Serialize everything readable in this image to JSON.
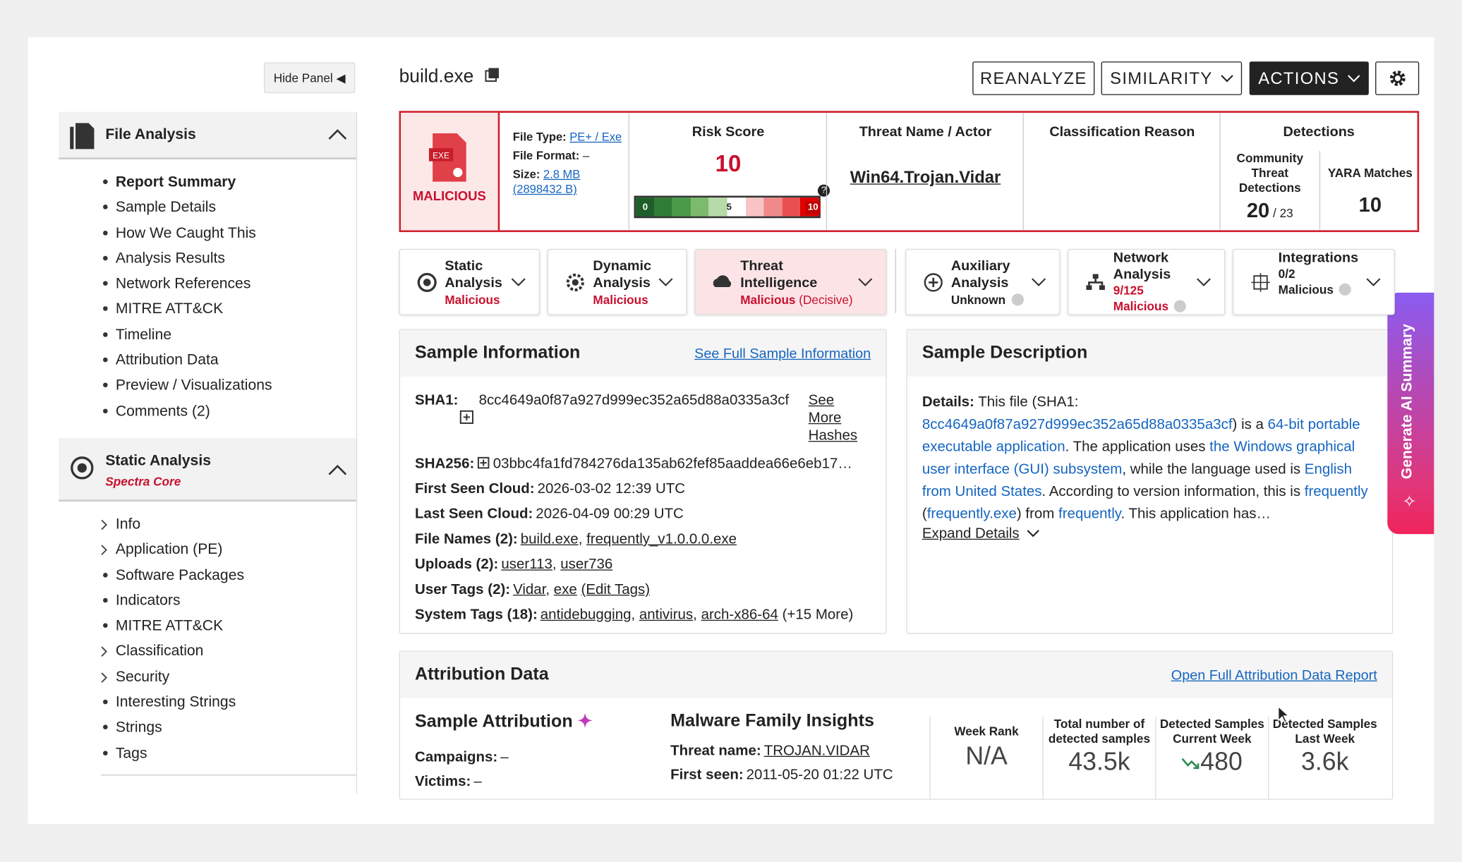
{
  "sidebar": {
    "hide_panel": "Hide Panel",
    "file_analysis": {
      "title": "File Analysis",
      "items": [
        "Report Summary",
        "Sample Details",
        "How We Caught This",
        "Analysis Results",
        "Network References",
        "MITRE ATT&CK",
        "Timeline",
        "Attribution Data",
        "Preview / Visualizations",
        "Comments (2)"
      ]
    },
    "static_analysis": {
      "title": "Static Analysis",
      "subtitle": "Spectra Core",
      "items": [
        {
          "label": "Info",
          "expandable": true
        },
        {
          "label": "Application (PE)",
          "expandable": true
        },
        {
          "label": "Software Packages",
          "expandable": false
        },
        {
          "label": "Indicators",
          "expandable": false
        },
        {
          "label": "MITRE ATT&CK",
          "expandable": false
        },
        {
          "label": "Classification",
          "expandable": true
        },
        {
          "label": "Security",
          "expandable": true
        },
        {
          "label": "Interesting Strings",
          "expandable": false
        },
        {
          "label": "Strings",
          "expandable": false
        },
        {
          "label": "Tags",
          "expandable": false
        }
      ]
    }
  },
  "header": {
    "filename": "build.exe",
    "buttons": [
      "REANALYZE",
      "SIMILARITY",
      "ACTIONS"
    ]
  },
  "summary": {
    "icon_label": "EXE",
    "verdict": "MALICIOUS",
    "file_type_label": "File Type:",
    "file_type": "PE+ / Exe",
    "file_format_label": "File Format:",
    "file_format": "–",
    "size_label": "Size:",
    "size": "2.8 MB",
    "size_bytes": "(2898432 B)",
    "risk_title": "Risk Score",
    "risk_score": 10,
    "risk_scale": [
      0,
      5,
      10
    ],
    "threat_title": "Threat Name / Actor",
    "threat_name": "Win64.Trojan.Vidar",
    "classification_title": "Classification Reason",
    "detections_title": "Detections",
    "community_title": "Community Threat Detections",
    "community_detected": 20,
    "community_total": "/ 23",
    "yara_title": "YARA Matches",
    "yara_matches": 10
  },
  "tabs": [
    {
      "title": "Static Analysis",
      "status": "Malicious"
    },
    {
      "title": "Dynamic Analysis",
      "status": "Malicious"
    },
    {
      "title": "Threat Intelligence",
      "status": "Malicious",
      "note": "(Decisive)"
    },
    {
      "title": "Auxiliary Analysis",
      "status": "Unknown"
    },
    {
      "title": "Network Analysis",
      "count": "9/125",
      "status": "Malicious"
    },
    {
      "title": "Integrations",
      "count": "0/2",
      "status": "Malicious"
    }
  ],
  "sample_info": {
    "title": "Sample Information",
    "link": "See Full Sample Information",
    "more_hashes": "See More Hashes",
    "rows": [
      {
        "label": "SHA1:",
        "parts": [
          {
            "text": "8cc4649a0f87a927d999ec352a65d88a0335a3cf"
          }
        ]
      },
      {
        "label": "SHA256:",
        "parts": [
          {
            "text": "03bbc4fa1fd784276da135ab62fef85aaddea66e6eb17…"
          }
        ]
      },
      {
        "label": "First Seen Cloud:",
        "parts": [
          {
            "text": "2026-03-02 12:39 UTC"
          }
        ]
      },
      {
        "label": "Last Seen Cloud:",
        "parts": [
          {
            "text": "2026-04-09 00:29 UTC"
          }
        ]
      },
      {
        "label": "File Names (2):",
        "parts": [
          {
            "text": "build.exe",
            "link": true
          },
          {
            "text": ", "
          },
          {
            "text": "frequently_v1.0.0.0.exe",
            "link": true
          }
        ]
      },
      {
        "label": "Uploads (2):",
        "parts": [
          {
            "text": "user113",
            "link": true
          },
          {
            "text": ", "
          },
          {
            "text": "user736",
            "link": true
          }
        ]
      },
      {
        "label": "User Tags (2):",
        "parts": [
          {
            "text": "Vidar",
            "link": true
          },
          {
            "text": ", "
          },
          {
            "text": "exe",
            "link": true
          },
          {
            "text": " "
          },
          {
            "text": "(Edit Tags)",
            "link": true
          }
        ]
      },
      {
        "label": "System Tags (18):",
        "parts": [
          {
            "text": "antidebugging",
            "link": true
          },
          {
            "text": ", "
          },
          {
            "text": "antivirus",
            "link": true
          },
          {
            "text": ", "
          },
          {
            "text": "arch-x86-64",
            "link": true
          },
          {
            "text": " (+15 More)"
          }
        ]
      }
    ]
  },
  "sample_description": {
    "title": "Sample Description",
    "parts": [
      {
        "text": "Details:",
        "bold": true
      },
      {
        "text": " This file (SHA1: "
      },
      {
        "text": "8cc4649a0f87a927d999ec352a65d88a0335a3cf",
        "link": true
      },
      {
        "text": ") is a "
      },
      {
        "text": "64-bit portable executable application",
        "link": true
      },
      {
        "text": ". The application uses "
      },
      {
        "text": "the Windows graphical user interface (GUI) subsystem",
        "link": true
      },
      {
        "text": ", while the language used is "
      },
      {
        "text": "English from United States",
        "link": true
      },
      {
        "text": ". According to version information, this is "
      },
      {
        "text": "frequently",
        "link": true
      },
      {
        "text": " ("
      },
      {
        "text": "frequently.exe",
        "link": true
      },
      {
        "text": ") from "
      },
      {
        "text": "frequently",
        "link": true
      },
      {
        "text": ". This application has…"
      }
    ],
    "expand": "Expand Details"
  },
  "attribution": {
    "title": "Attribution Data",
    "link": "Open Full Attribution Data Report",
    "sample_attribution": {
      "title": "Sample Attribution",
      "rows": [
        {
          "label": "Campaigns:",
          "value": "–"
        },
        {
          "label": "Victims:",
          "value": "–"
        }
      ]
    },
    "family": {
      "title": "Malware Family Insights",
      "rows": [
        {
          "label": "Threat name:",
          "value": "TROJAN.VIDAR"
        },
        {
          "label": "First seen:",
          "value": "2011-05-20 01:22 UTC"
        }
      ]
    },
    "stats": [
      {
        "label": "Week Rank",
        "value": "N/A"
      },
      {
        "label": "Total number of detected samples",
        "value": "43.5k"
      },
      {
        "label": "Detected Samples Current Week",
        "value": 480
      },
      {
        "label": "Detected Samples Last Week",
        "value": "3.6k"
      }
    ]
  },
  "ai_button": "Generate AI Summary"
}
